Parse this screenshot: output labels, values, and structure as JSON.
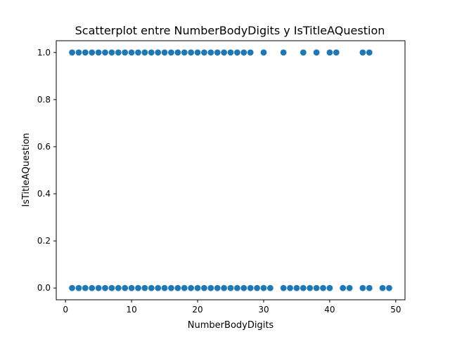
{
  "chart_data": {
    "type": "scatter",
    "title": "Scatterplot entre NumberBodyDigits y IsTitleAQuestion",
    "xlabel": "NumberBodyDigits",
    "ylabel": "IsTitleAQuestion",
    "xlim": [
      -1.4,
      51.4
    ],
    "ylim": [
      -0.05,
      1.05
    ],
    "xticks": [
      0,
      10,
      20,
      30,
      40,
      50
    ],
    "xtick_labels": [
      "0",
      "10",
      "20",
      "30",
      "40",
      "50"
    ],
    "yticks": [
      0.0,
      0.2,
      0.4,
      0.6,
      0.8,
      1.0
    ],
    "ytick_labels": [
      "0.0",
      "0.2",
      "0.4",
      "0.6",
      "0.8",
      "1.0"
    ],
    "grid": false,
    "marker_color": "#1f77b4",
    "series": [
      {
        "x": [
          1,
          2,
          3,
          4,
          5,
          6,
          7,
          8,
          9,
          10,
          11,
          12,
          13,
          14,
          15,
          16,
          17,
          18,
          19,
          20,
          21,
          22,
          23,
          24,
          25,
          26,
          27,
          28,
          30,
          33,
          36,
          38,
          40,
          41,
          45,
          46,
          1,
          2,
          3,
          4,
          5,
          6,
          7,
          8,
          9,
          10,
          11,
          12,
          13,
          14,
          15,
          16,
          17,
          18,
          19,
          20,
          21,
          22,
          23,
          24,
          25,
          26,
          27,
          28,
          29,
          30,
          31,
          33,
          34,
          35,
          36,
          37,
          38,
          39,
          40,
          42,
          43,
          45,
          46,
          48,
          49
        ],
        "y": [
          1,
          1,
          1,
          1,
          1,
          1,
          1,
          1,
          1,
          1,
          1,
          1,
          1,
          1,
          1,
          1,
          1,
          1,
          1,
          1,
          1,
          1,
          1,
          1,
          1,
          1,
          1,
          1,
          1,
          1,
          1,
          1,
          1,
          1,
          1,
          1,
          0,
          0,
          0,
          0,
          0,
          0,
          0,
          0,
          0,
          0,
          0,
          0,
          0,
          0,
          0,
          0,
          0,
          0,
          0,
          0,
          0,
          0,
          0,
          0,
          0,
          0,
          0,
          0,
          0,
          0,
          0,
          0,
          0,
          0,
          0,
          0,
          0,
          0,
          0,
          0,
          0,
          0,
          0,
          0,
          0
        ]
      }
    ]
  }
}
